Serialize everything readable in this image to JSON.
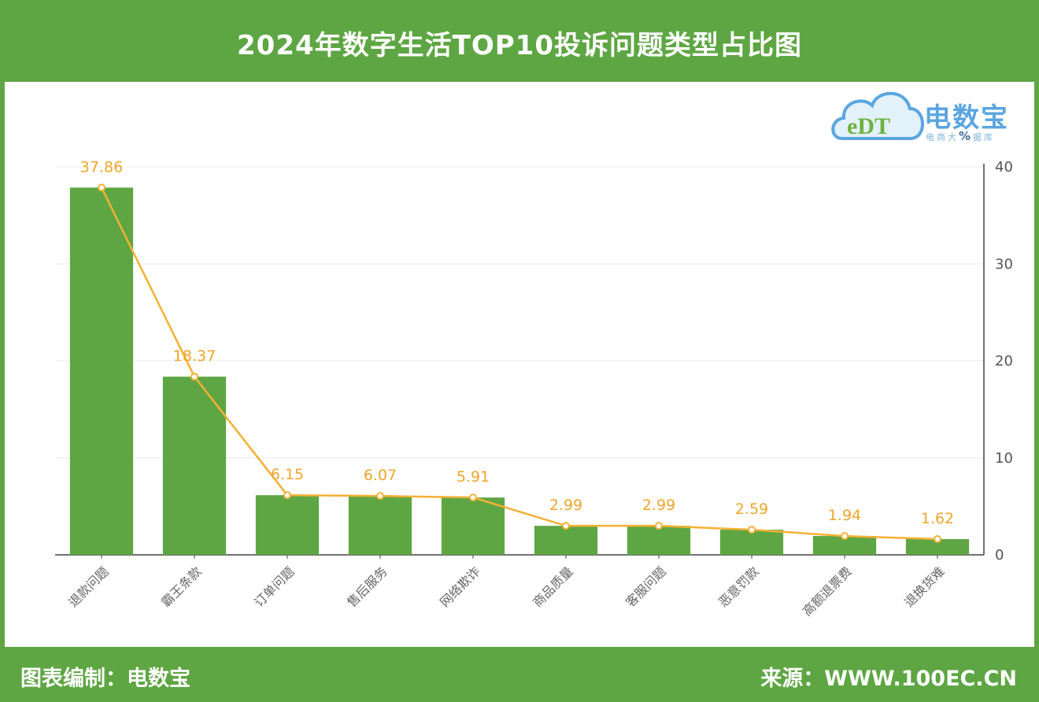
{
  "header": {
    "title": "2024年数字生活TOP10投诉问题类型占比图"
  },
  "footer": {
    "left": "图表编制：电数宝",
    "right": "来源：WWW.100EC.CN"
  },
  "logo": {
    "mark": "eDT",
    "name": "电数宝",
    "sub_a": "电商大",
    "sub_pct": "%",
    "sub_b": "据库"
  },
  "colors": {
    "bar": "#5ea643",
    "line": "#f5b133",
    "header_bg": "#5ea643"
  },
  "chart_data": {
    "type": "bar",
    "title": "2024年数字生活TOP10投诉问题类型占比图",
    "categories": [
      "退款问题",
      "霸王条款",
      "订单问题",
      "售后服务",
      "网络欺诈",
      "商品质量",
      "客服问题",
      "恶意罚款",
      "高额退票费",
      "退换货难"
    ],
    "series": [
      {
        "type": "bar",
        "values": [
          37.86,
          18.37,
          6.15,
          6.07,
          5.91,
          2.99,
          2.99,
          2.59,
          1.94,
          1.62
        ]
      },
      {
        "type": "line",
        "values": [
          37.86,
          18.37,
          6.15,
          6.07,
          5.91,
          2.99,
          2.99,
          2.59,
          1.94,
          1.62
        ]
      }
    ],
    "data_labels": [
      "37.86",
      "18.37",
      "6.15",
      "6.07",
      "5.91",
      "2.99",
      "2.99",
      "2.59",
      "1.94",
      "1.62"
    ],
    "y_ticks": [
      "0",
      "10",
      "20",
      "30",
      "40"
    ],
    "ylim": [
      0,
      40
    ],
    "y_axis_side": "right",
    "grid": true,
    "legend": "none"
  }
}
